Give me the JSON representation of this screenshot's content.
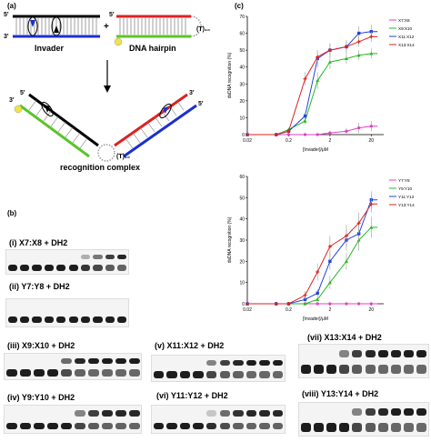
{
  "panel_a": {
    "label": "(a)",
    "invader_label": "Invader",
    "hairpin_label": "DNA hairpin",
    "hairpin_loop": "(T)₁₀",
    "complex_loop": "(T)₁₀",
    "complex_label": "recognition complex",
    "plus": "+",
    "five_prime": "5'",
    "three_prime": "3'"
  },
  "panel_b": {
    "label": "(b)",
    "gels": [
      {
        "title": "(i) X7:X8 + DH2",
        "band_strengths": [
          0,
          0,
          0,
          0,
          0,
          0,
          0.3,
          0.55,
          0.8,
          0.9
        ]
      },
      {
        "title": "(ii) Y7:Y8 + DH2",
        "band_strengths": [
          0,
          0,
          0,
          0,
          0,
          0,
          0,
          0,
          0,
          0
        ]
      },
      {
        "title": "(iii) X9:X10 + DH2",
        "band_strengths": [
          0,
          0,
          0,
          0,
          0.6,
          0.9,
          0.95,
          0.95,
          0.95,
          0.95
        ]
      },
      {
        "title": "(iv) Y9:Y10 + DH2",
        "band_strengths": [
          0,
          0,
          0,
          0,
          0,
          0.5,
          0.8,
          0.9,
          0.9,
          0.9
        ]
      },
      {
        "title": "(v) X11:X12 + DH2",
        "band_strengths": [
          0,
          0,
          0,
          0,
          0.5,
          0.8,
          0.9,
          0.95,
          0.95,
          0.95
        ]
      },
      {
        "title": "(vi) Y11:Y12 + DH2",
        "band_strengths": [
          0,
          0,
          0,
          0,
          0.2,
          0.6,
          0.85,
          0.9,
          0.9,
          0.9
        ]
      },
      {
        "title": "(vii) X13:X14 + DH2",
        "band_strengths": [
          0,
          0,
          0,
          0.5,
          0.8,
          0.9,
          0.95,
          0.95,
          0.95,
          0.95
        ]
      },
      {
        "title": "(viii) Y13:Y14 + DH2",
        "band_strengths": [
          0,
          0,
          0,
          0,
          0.5,
          0.8,
          0.9,
          0.95,
          0.95,
          0.95
        ]
      }
    ]
  },
  "panel_c": {
    "label": "(c)"
  },
  "chart_data": [
    {
      "type": "scatter",
      "title": "",
      "xlabel": "[Invader]/μM",
      "ylabel": "dsDNA recognition (%)",
      "xscale": "log",
      "xlim": [
        0.02,
        40
      ],
      "ylim": [
        0,
        70
      ],
      "xticks": [
        "0.02",
        "0.2",
        "2",
        "20"
      ],
      "yticks": [
        "0",
        "10",
        "20",
        "30",
        "40",
        "50",
        "60",
        "70"
      ],
      "legend_position": "top-right",
      "series": [
        {
          "name": "X7:X8",
          "color": "#e040c0",
          "x": [
            0.02,
            0.1,
            0.2,
            0.5,
            1,
            2,
            5,
            10,
            20
          ],
          "y": [
            0,
            0,
            0,
            0,
            0,
            1,
            2,
            4,
            5
          ],
          "err": [
            0,
            0,
            0,
            0,
            0,
            1,
            2,
            3,
            3
          ]
        },
        {
          "name": "X9:X10",
          "color": "#22bb22",
          "x": [
            0.02,
            0.1,
            0.2,
            0.5,
            1,
            2,
            5,
            10,
            20
          ],
          "y": [
            0,
            0,
            3,
            8,
            32,
            43,
            45,
            47,
            48
          ],
          "err": [
            0,
            0,
            1,
            2,
            5,
            4,
            3,
            3,
            3
          ]
        },
        {
          "name": "X11:X12",
          "color": "#2244dd",
          "x": [
            0.02,
            0.1,
            0.2,
            0.5,
            1,
            2,
            5,
            10,
            20
          ],
          "y": [
            0,
            0,
            2,
            11,
            45,
            50,
            52,
            60,
            61
          ],
          "err": [
            0,
            0,
            1,
            2,
            5,
            4,
            4,
            4,
            4
          ]
        },
        {
          "name": "X13:X14",
          "color": "#dd2222",
          "x": [
            0.02,
            0.1,
            0.2,
            0.5,
            1,
            2,
            5,
            10,
            20
          ],
          "y": [
            0,
            0,
            2,
            33,
            46,
            50,
            52,
            55,
            58
          ],
          "err": [
            0,
            0,
            1,
            4,
            4,
            4,
            3,
            3,
            3
          ]
        }
      ]
    },
    {
      "type": "scatter",
      "title": "",
      "xlabel": "[Invader]/μM",
      "ylabel": "dsDNA recognition (%)",
      "xscale": "log",
      "xlim": [
        0.02,
        40
      ],
      "ylim": [
        0,
        60
      ],
      "xticks": [
        "0.02",
        "0.2",
        "2",
        "20"
      ],
      "yticks": [
        "0",
        "10",
        "20",
        "30",
        "40",
        "50",
        "60"
      ],
      "legend_position": "top-right",
      "series": [
        {
          "name": "Y7:Y8",
          "color": "#e040c0",
          "x": [
            0.02,
            0.1,
            0.2,
            0.5,
            1,
            2,
            5,
            10,
            20
          ],
          "y": [
            0,
            0,
            0,
            0,
            0,
            0,
            0,
            0,
            0
          ],
          "err": [
            0,
            0,
            0,
            0,
            0,
            0,
            0,
            0,
            0
          ]
        },
        {
          "name": "Y9:Y10",
          "color": "#22bb22",
          "x": [
            0.02,
            0.1,
            0.2,
            0.5,
            1,
            2,
            5,
            10,
            20
          ],
          "y": [
            0,
            0,
            0,
            0,
            2,
            10,
            20,
            30,
            36
          ],
          "err": [
            0,
            0,
            0,
            0,
            1,
            3,
            4,
            5,
            5
          ]
        },
        {
          "name": "Y11:Y12",
          "color": "#2244dd",
          "x": [
            0.02,
            0.1,
            0.2,
            0.5,
            1,
            2,
            5,
            10,
            20
          ],
          "y": [
            0,
            0,
            0,
            2,
            5,
            20,
            30,
            33,
            49
          ],
          "err": [
            0,
            0,
            0,
            1,
            2,
            4,
            5,
            5,
            4
          ]
        },
        {
          "name": "Y13:Y14",
          "color": "#dd2222",
          "x": [
            0.02,
            0.1,
            0.2,
            0.5,
            1,
            2,
            5,
            10,
            20
          ],
          "y": [
            0,
            0,
            0,
            4,
            15,
            27,
            32,
            38,
            47
          ],
          "err": [
            0,
            0,
            0,
            2,
            4,
            5,
            5,
            5,
            4
          ]
        }
      ]
    }
  ]
}
